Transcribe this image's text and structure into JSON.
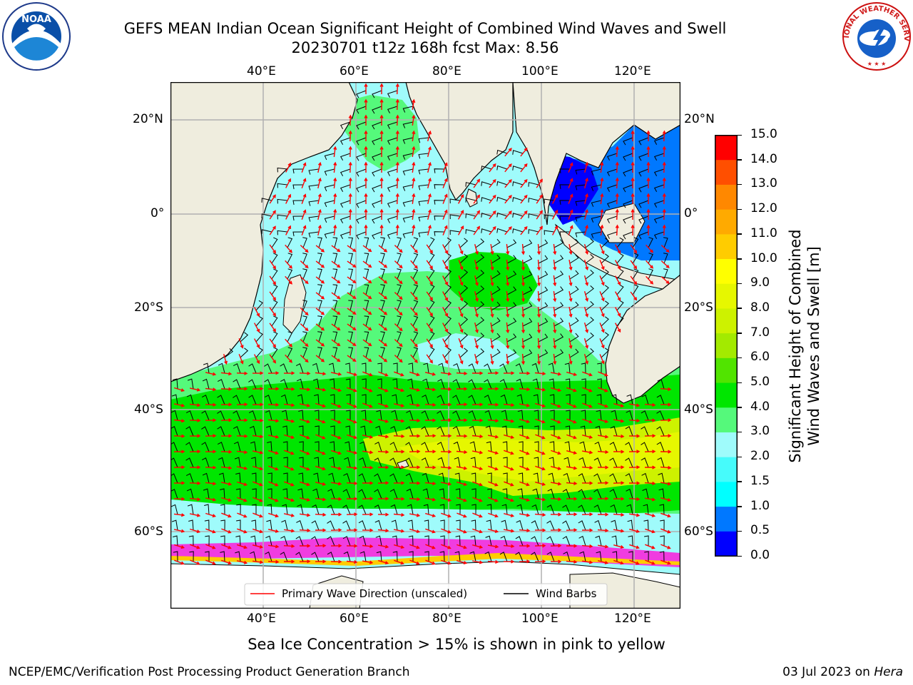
{
  "header": {
    "title_line1": "GEFS MEAN Indian Ocean Significant Height of Combined Wind Waves and Swell",
    "title_line2": "20230701 t12z 168h fcst   Max: 8.56"
  },
  "logos": {
    "left_text": "NOAA",
    "right_text": "NATIONAL WEATHER SERVICE"
  },
  "map": {
    "lon_labels": [
      "40°E",
      "60°E",
      "80°E",
      "100°E",
      "120°E"
    ],
    "lat_labels": [
      "20°N",
      "0°",
      "20°S",
      "40°S",
      "60°S"
    ],
    "extent": {
      "lon": [
        20,
        130
      ],
      "lat": [
        -73,
        28
      ]
    },
    "colors": {
      "land": "#efedde",
      "ocean_calm": "#9ffbfb",
      "ocean_mid": "#55f97b",
      "ocean_high": "#00e600",
      "ocean_peak": "#e6f700",
      "sea_ice": "#f03ce0",
      "wave_direction": "#ff0000",
      "barbs": "#000000"
    }
  },
  "legend": {
    "items": [
      "Primary Wave Direction (unscaled)",
      "Wind Barbs"
    ]
  },
  "colorbar": {
    "label_line1": "Significant Height of Combined",
    "label_line2": "Wind Waves and Swell [m]",
    "ticks": [
      "0.0",
      "0.5",
      "1.0",
      "1.5",
      "2.0",
      "3.0",
      "4.0",
      "5.0",
      "6.0",
      "7.0",
      "8.0",
      "9.0",
      "10.0",
      "11.0",
      "12.0",
      "13.0",
      "14.0",
      "15.0"
    ],
    "colors": [
      "#0000ff",
      "#0078ff",
      "#00ffff",
      "#46fbfb",
      "#9ffbfb",
      "#55f97b",
      "#00e600",
      "#51e400",
      "#a3ea00",
      "#cdf200",
      "#e6f700",
      "#ffff00",
      "#ffcc00",
      "#ffaa00",
      "#ff8800",
      "#ff4f00",
      "#ff0000"
    ]
  },
  "footer": {
    "note": "Sea Ice Concentration > 15% is shown in pink to yellow",
    "left": "NCEP/EMC/Verification Post Processing Product Generation Branch",
    "right_prefix": "03 Jul 2023 on ",
    "right_host": "Hera"
  }
}
